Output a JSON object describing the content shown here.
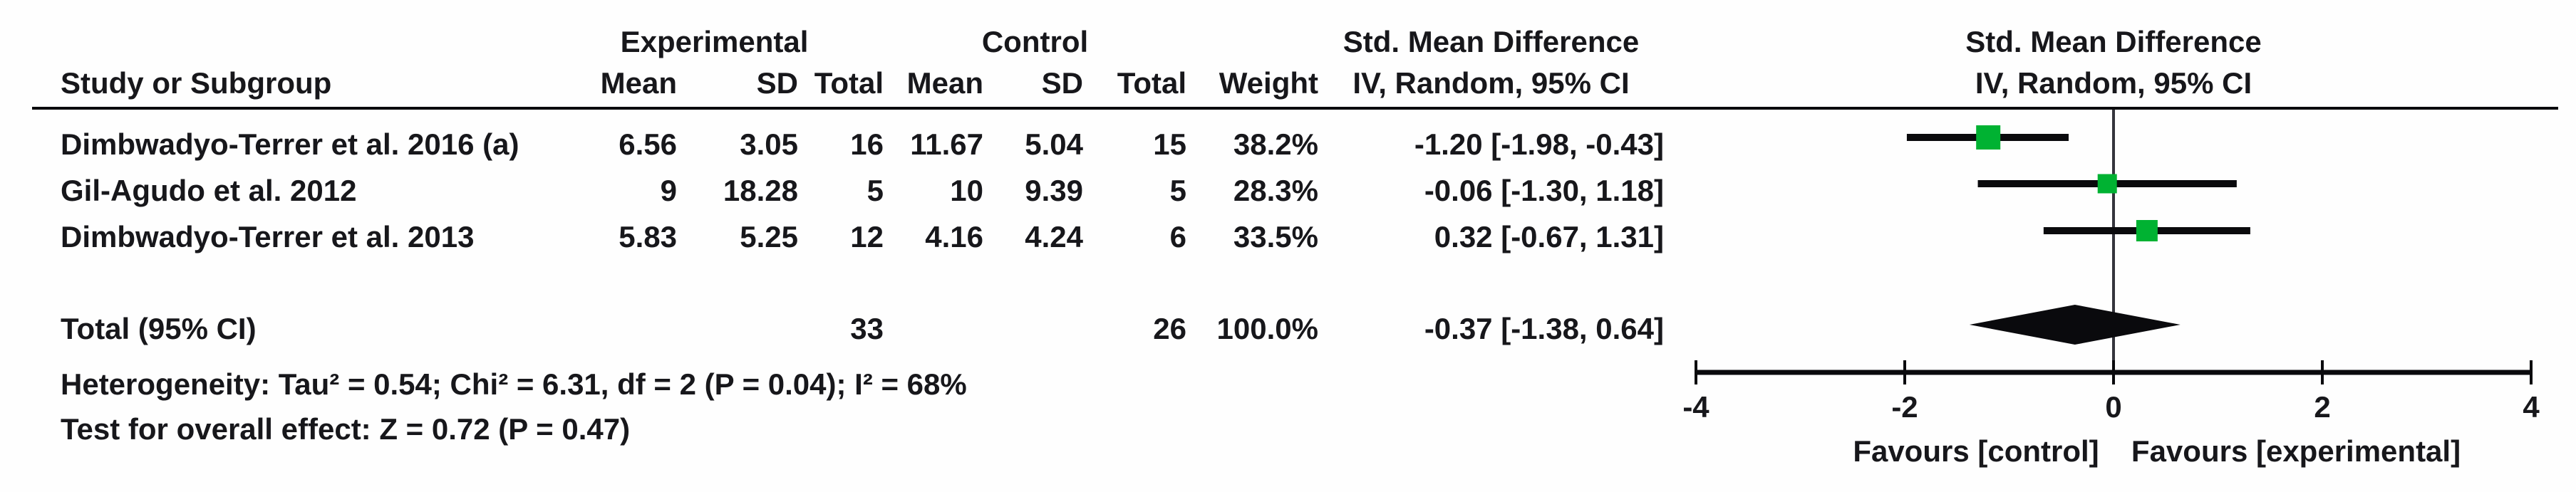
{
  "colors": {
    "marker_green": "#00b232",
    "line_black": "#0a0a0d",
    "zero_line_gray": "#34343c",
    "text": "#17171b",
    "background": "#fefefe"
  },
  "header": {
    "group_experimental": "Experimental",
    "group_control": "Control",
    "smd_col_line1": "Std. Mean Difference",
    "smd_col_line2": "IV, Random, 95% CI",
    "plot_col_line1": "Std. Mean Difference",
    "plot_col_line2": "IV, Random, 95% CI",
    "study": "Study or Subgroup",
    "exp_mean": "Mean",
    "exp_sd": "SD",
    "exp_total": "Total",
    "ctl_mean": "Mean",
    "ctl_sd": "SD",
    "ctl_total": "Total",
    "weight": "Weight"
  },
  "rows": [
    {
      "study": "Dimbwadyo-Terrer et al. 2016 (a)",
      "exp_mean": "6.56",
      "exp_sd": "3.05",
      "exp_total": "16",
      "ctl_mean": "11.67",
      "ctl_sd": "5.04",
      "ctl_total": "15",
      "weight": "38.2%",
      "ci_text": "-1.20 [-1.98, -0.43]"
    },
    {
      "study": "Gil-Agudo et al. 2012",
      "exp_mean": "9",
      "exp_sd": "18.28",
      "exp_total": "5",
      "ctl_mean": "10",
      "ctl_sd": "9.39",
      "ctl_total": "5",
      "weight": "28.3%",
      "ci_text": "-0.06 [-1.30, 1.18]"
    },
    {
      "study": "Dimbwadyo-Terrer et al. 2013",
      "exp_mean": "5.83",
      "exp_sd": "5.25",
      "exp_total": "12",
      "ctl_mean": "4.16",
      "ctl_sd": "4.24",
      "ctl_total": "6",
      "weight": "33.5%",
      "ci_text": "0.32 [-0.67, 1.31]"
    }
  ],
  "total": {
    "label": "Total (95% CI)",
    "exp_total": "33",
    "ctl_total": "26",
    "weight": "100.0%",
    "ci_text": "-0.37 [-1.38, 0.64]"
  },
  "footer": {
    "heterogeneity": "Heterogeneity: Tau² = 0.54; Chi² = 6.31, df = 2 (P = 0.04); I² = 68%",
    "overall_effect": "Test for overall effect: Z = 0.72 (P = 0.47)"
  },
  "chart_data": {
    "type": "scatter",
    "subtype": "forest-plot",
    "effect_measure": "Std. Mean Difference, IV, Random, 95% CI",
    "studies": [
      {
        "name": "Dimbwadyo-Terrer et al. 2016 (a)",
        "smd": -1.2,
        "ci_low": -1.98,
        "ci_high": -0.43,
        "weight_pct": 38.2
      },
      {
        "name": "Gil-Agudo et al. 2012",
        "smd": -0.06,
        "ci_low": -1.3,
        "ci_high": 1.18,
        "weight_pct": 28.3
      },
      {
        "name": "Dimbwadyo-Terrer et al. 2013",
        "smd": 0.32,
        "ci_low": -0.67,
        "ci_high": 1.31,
        "weight_pct": 33.5
      }
    ],
    "total": {
      "smd": -0.37,
      "ci_low": -1.38,
      "ci_high": 0.64
    },
    "axis": {
      "min": -4,
      "max": 4,
      "ticks": [
        "-4",
        "-2",
        "0",
        "2",
        "4"
      ],
      "favours_left": "Favours [control]",
      "favours_right": "Favours [experimental]"
    }
  }
}
